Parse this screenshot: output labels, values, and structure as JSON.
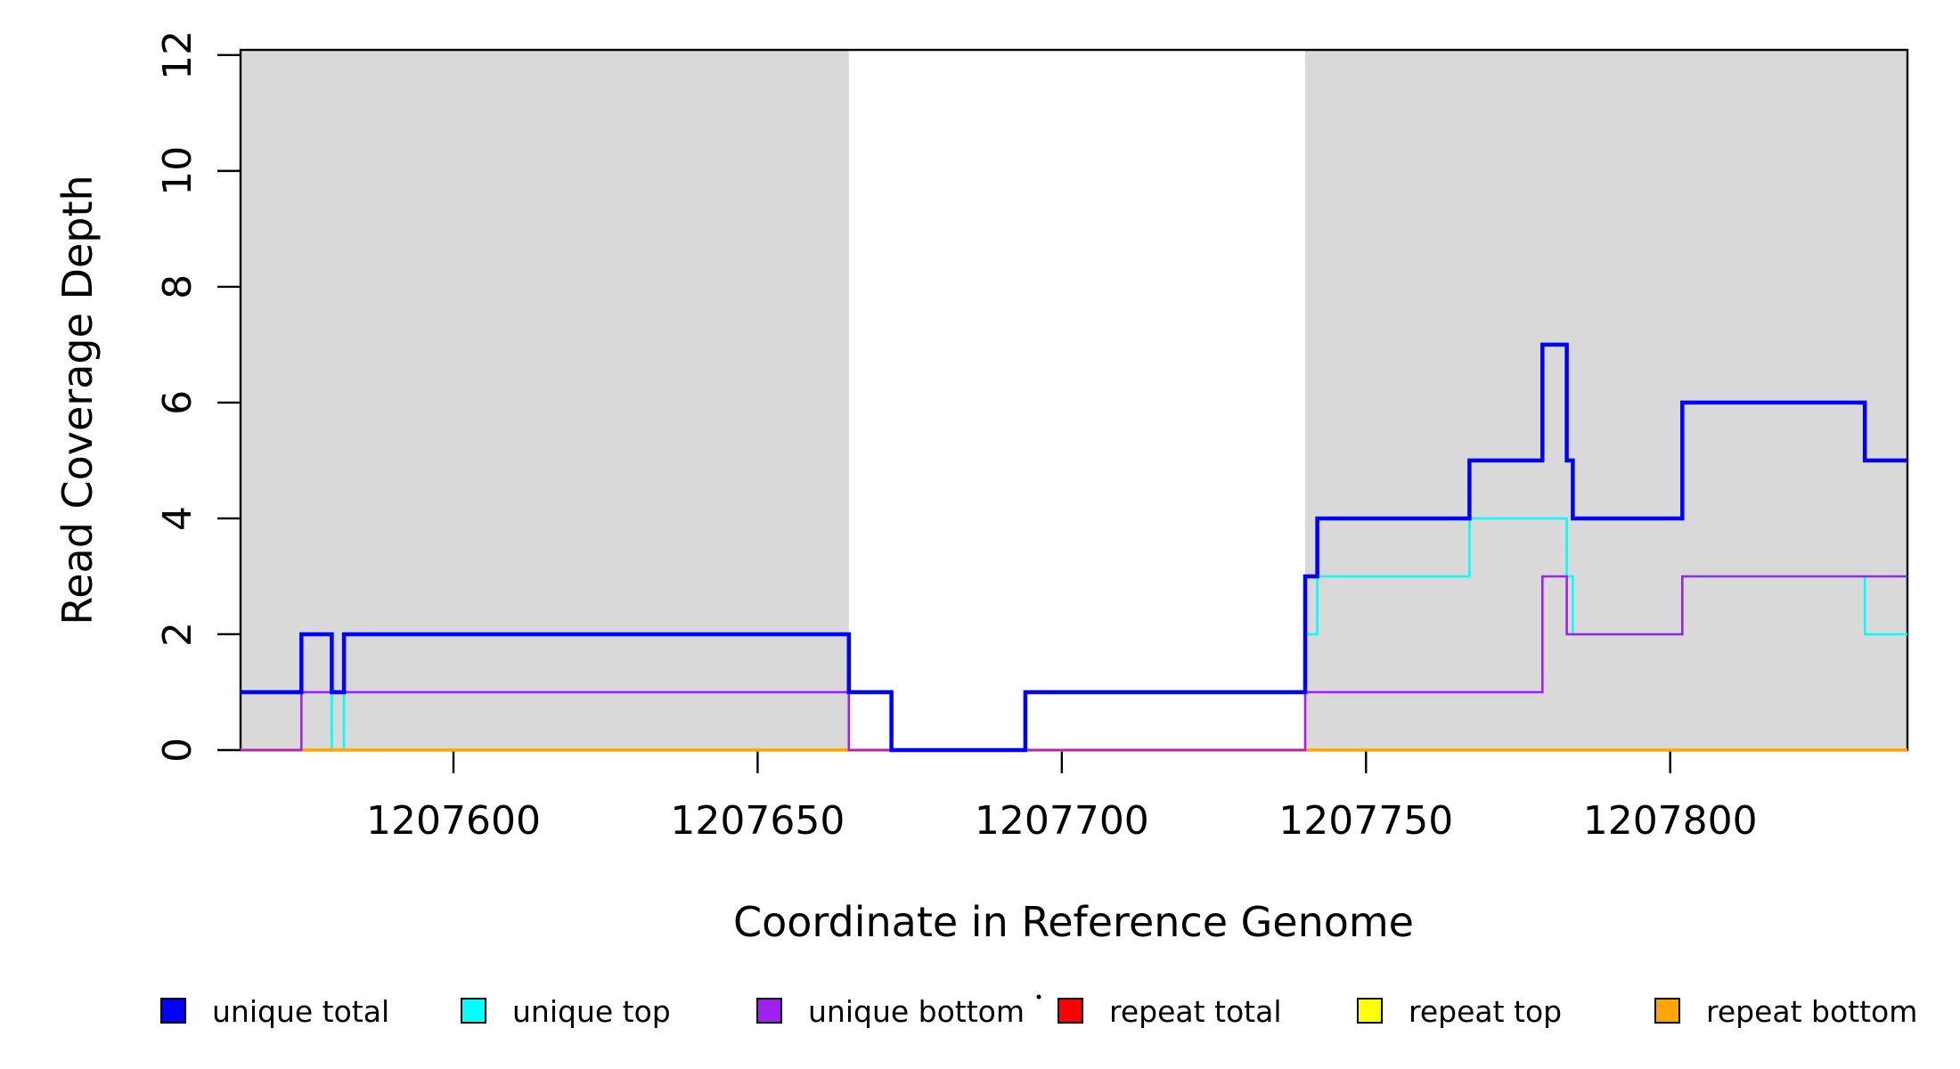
{
  "chart_data": {
    "type": "line",
    "subtype": "step",
    "title": "",
    "xlabel": "Coordinate in Reference Genome",
    "ylabel": "Read Coverage Depth",
    "xlim": [
      1207565,
      1207839
    ],
    "ylim": [
      0,
      12.09
    ],
    "xticks": [
      1207600,
      1207650,
      1207700,
      1207750,
      1207800
    ],
    "yticks": [
      0,
      2,
      4,
      6,
      8,
      10,
      12
    ],
    "grid": false,
    "legend_position": "bottom",
    "plot_background": "#ffffff",
    "shading_color": "#D9D9D9",
    "shaded_regions": [
      {
        "name": "left-repeat-region",
        "x0": 1207565,
        "x1": 1207665
      },
      {
        "name": "right-repeat-region",
        "x0": 1207740,
        "x1": 1207839
      }
    ],
    "series": [
      {
        "name": "unique total",
        "color": "#0000FF",
        "line_width": 4.5,
        "steps": [
          [
            1207565,
            1
          ],
          [
            1207575,
            2
          ],
          [
            1207580,
            1
          ],
          [
            1207582,
            2
          ],
          [
            1207665,
            1
          ],
          [
            1207672,
            0
          ],
          [
            1207694,
            1
          ],
          [
            1207740,
            3
          ],
          [
            1207742,
            4
          ],
          [
            1207767,
            5
          ],
          [
            1207779,
            7
          ],
          [
            1207783,
            5
          ],
          [
            1207784,
            4
          ],
          [
            1207802,
            6
          ],
          [
            1207832,
            5
          ]
        ]
      },
      {
        "name": "unique top",
        "color": "#00FFFF",
        "line_width": 2.6,
        "steps": [
          [
            1207565,
            1
          ],
          [
            1207580,
            0
          ],
          [
            1207582,
            1
          ],
          [
            1207672,
            0
          ],
          [
            1207694,
            1
          ],
          [
            1207740,
            2
          ],
          [
            1207742,
            3
          ],
          [
            1207767,
            4
          ],
          [
            1207783,
            3
          ],
          [
            1207784,
            2
          ],
          [
            1207802,
            3
          ],
          [
            1207832,
            2
          ]
        ]
      },
      {
        "name": "unique bottom",
        "color": "#A020F0",
        "line_width": 2.6,
        "steps": [
          [
            1207565,
            0
          ],
          [
            1207575,
            1
          ],
          [
            1207665,
            0
          ],
          [
            1207740,
            1
          ],
          [
            1207779,
            3
          ],
          [
            1207783,
            2
          ],
          [
            1207802,
            3
          ]
        ]
      },
      {
        "name": "repeat total",
        "color": "#FF0000",
        "line_width": 2.4,
        "steps": [
          [
            1207565,
            0
          ]
        ]
      },
      {
        "name": "repeat top",
        "color": "#FFFF00",
        "line_width": 2.4,
        "steps": [
          [
            1207565,
            0
          ]
        ]
      },
      {
        "name": "repeat bottom",
        "color": "#FFA500",
        "line_width": 3.4,
        "steps": [
          [
            1207565,
            0
          ]
        ]
      }
    ],
    "draw_order": [
      1,
      3,
      4,
      5,
      2,
      0
    ],
    "legend": [
      {
        "label": "unique total",
        "color": "#0000FF"
      },
      {
        "label": "unique top",
        "color": "#00FFFF"
      },
      {
        "label": "unique bottom",
        "color": "#A020F0"
      },
      {
        "label": "repeat total",
        "color": "#FF0000"
      },
      {
        "label": "repeat top",
        "color": "#FFFF00"
      },
      {
        "label": "repeat bottom",
        "color": "#FFA500"
      }
    ]
  }
}
